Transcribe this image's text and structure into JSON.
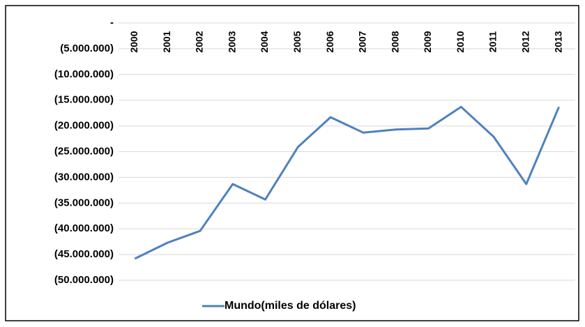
{
  "chart_data": {
    "type": "line",
    "categories": [
      "2000",
      "2001",
      "2002",
      "2003",
      "2004",
      "2005",
      "2006",
      "2007",
      "2008",
      "2009",
      "2010",
      "2011",
      "2012",
      "2013"
    ],
    "series": [
      {
        "name": "Mundo(miles de dólares)",
        "color": "#4f81bd",
        "values": [
          -45800000,
          -42700000,
          -40400000,
          -31300000,
          -34300000,
          -24100000,
          -18300000,
          -21300000,
          -20700000,
          -20500000,
          -16300000,
          -22100000,
          -31300000,
          -16300000
        ]
      }
    ],
    "ylim": [
      -50000000,
      0
    ],
    "yticks": [
      {
        "value": 0,
        "label": "-"
      },
      {
        "value": -5000000,
        "label": "(5.000.000)"
      },
      {
        "value": -10000000,
        "label": "(10.000.000)"
      },
      {
        "value": -15000000,
        "label": "(15.000.000)"
      },
      {
        "value": -20000000,
        "label": "(20.000.000)"
      },
      {
        "value": -25000000,
        "label": "(25.000.000)"
      },
      {
        "value": -30000000,
        "label": "(30.000.000)"
      },
      {
        "value": -35000000,
        "label": "(35.000.000)"
      },
      {
        "value": -40000000,
        "label": "(40.000.000)"
      },
      {
        "value": -45000000,
        "label": "(45.000.000)"
      },
      {
        "value": -50000000,
        "label": "(50.000.000)"
      }
    ],
    "grid": true,
    "legend": "bottom"
  }
}
